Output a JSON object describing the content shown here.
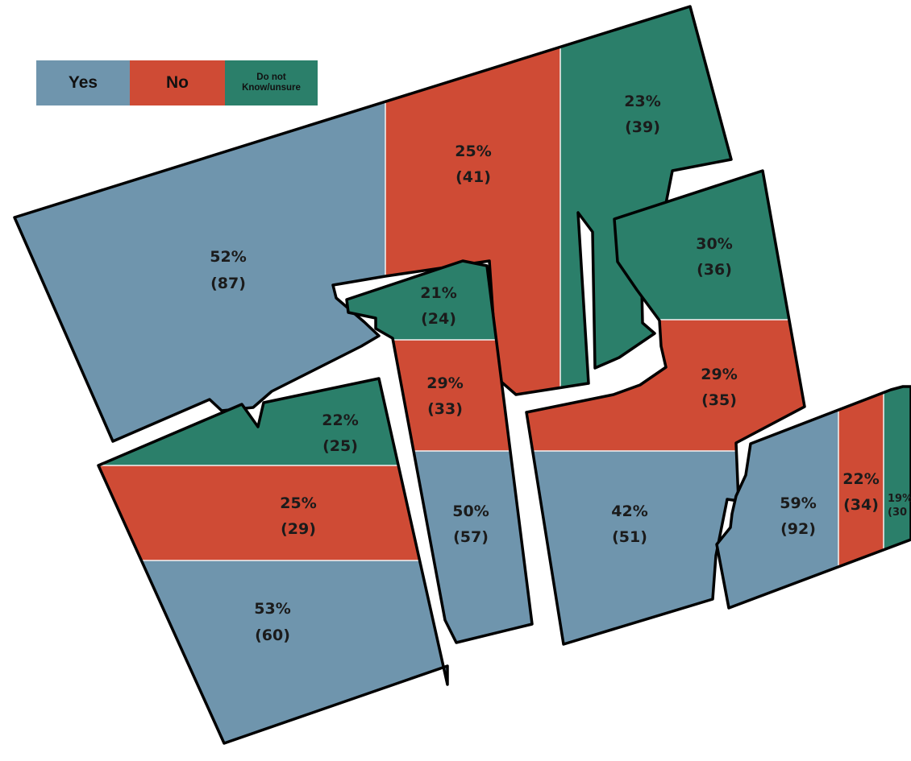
{
  "colors": {
    "yes": "#6f95ad",
    "no": "#cf4b35",
    "unsure": "#2b7f6a",
    "outline": "#000000",
    "divider": "#f3f3f3"
  },
  "legend": {
    "yes": "Yes",
    "no": "No",
    "unsure": "Do not Know/unsure"
  },
  "labels": {
    "r1_yes_pct": "52%",
    "r1_yes_cnt": "(87)",
    "r1_no_pct": "25%",
    "r1_no_cnt": "(41)",
    "r1_unsure_pct": "23%",
    "r1_unsure_cnt": "(39)",
    "r2_unsure_pct": "22%",
    "r2_unsure_cnt": "(25)",
    "r2_no_pct": "25%",
    "r2_no_cnt": "(29)",
    "r2_yes_pct": "53%",
    "r2_yes_cnt": "(60)",
    "r3_unsure_pct": "21%",
    "r3_unsure_cnt": "(24)",
    "r3_no_pct": "29%",
    "r3_no_cnt": "(33)",
    "r3_yes_pct": "50%",
    "r3_yes_cnt": "(57)",
    "r4_unsure_pct": "30%",
    "r4_unsure_cnt": "(36)",
    "r4_no_pct": "29%",
    "r4_no_cnt": "(35)",
    "r4_yes_pct": "42%",
    "r4_yes_cnt": "(51)",
    "r5_yes_pct": "59%",
    "r5_yes_cnt": "(92)",
    "r5_no_pct": "22%",
    "r5_no_cnt": "(34)",
    "r5_unsure_pct": "19%",
    "r5_unsure_cnt": "(30"
  }
}
